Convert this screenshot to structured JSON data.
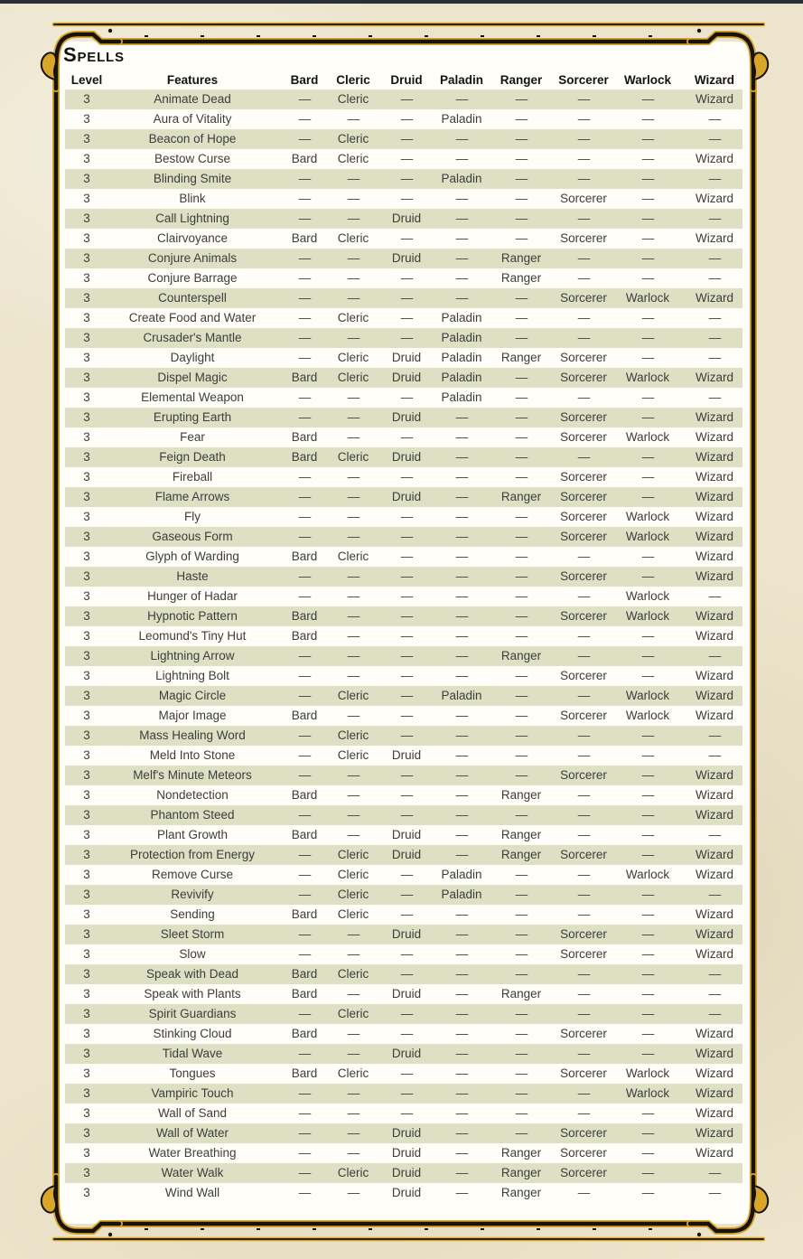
{
  "title": "Spells",
  "table": {
    "headers": [
      "Level",
      "Features",
      "Bard",
      "Cleric",
      "Druid",
      "Paladin",
      "Ranger",
      "Sorcerer",
      "Warlock",
      "Wizard"
    ],
    "rows": [
      [
        "3",
        "Animate Dead",
        "—",
        "Cleric",
        "—",
        "—",
        "—",
        "—",
        "—",
        "Wizard"
      ],
      [
        "3",
        "Aura of Vitality",
        "—",
        "—",
        "—",
        "Paladin",
        "—",
        "—",
        "—",
        "—"
      ],
      [
        "3",
        "Beacon of Hope",
        "—",
        "Cleric",
        "—",
        "—",
        "—",
        "—",
        "—",
        "—"
      ],
      [
        "3",
        "Bestow Curse",
        "Bard",
        "Cleric",
        "—",
        "—",
        "—",
        "—",
        "—",
        "Wizard"
      ],
      [
        "3",
        "Blinding Smite",
        "—",
        "—",
        "—",
        "Paladin",
        "—",
        "—",
        "—",
        "—"
      ],
      [
        "3",
        "Blink",
        "—",
        "—",
        "—",
        "—",
        "—",
        "Sorcerer",
        "—",
        "Wizard"
      ],
      [
        "3",
        "Call Lightning",
        "—",
        "—",
        "Druid",
        "—",
        "—",
        "—",
        "—",
        "—"
      ],
      [
        "3",
        "Clairvoyance",
        "Bard",
        "Cleric",
        "—",
        "—",
        "—",
        "Sorcerer",
        "—",
        "Wizard"
      ],
      [
        "3",
        "Conjure Animals",
        "—",
        "—",
        "Druid",
        "—",
        "Ranger",
        "—",
        "—",
        "—"
      ],
      [
        "3",
        "Conjure Barrage",
        "—",
        "—",
        "—",
        "—",
        "Ranger",
        "—",
        "—",
        "—"
      ],
      [
        "3",
        "Counterspell",
        "—",
        "—",
        "—",
        "—",
        "—",
        "Sorcerer",
        "Warlock",
        "Wizard"
      ],
      [
        "3",
        "Create Food and Water",
        "—",
        "Cleric",
        "—",
        "Paladin",
        "—",
        "—",
        "—",
        "—"
      ],
      [
        "3",
        "Crusader's Mantle",
        "—",
        "—",
        "—",
        "Paladin",
        "—",
        "—",
        "—",
        "—"
      ],
      [
        "3",
        "Daylight",
        "—",
        "Cleric",
        "Druid",
        "Paladin",
        "Ranger",
        "Sorcerer",
        "—",
        "—"
      ],
      [
        "3",
        "Dispel Magic",
        "Bard",
        "Cleric",
        "Druid",
        "Paladin",
        "—",
        "Sorcerer",
        "Warlock",
        "Wizard"
      ],
      [
        "3",
        "Elemental Weapon",
        "—",
        "—",
        "—",
        "Paladin",
        "—",
        "—",
        "—",
        "—"
      ],
      [
        "3",
        "Erupting Earth",
        "—",
        "—",
        "Druid",
        "—",
        "—",
        "Sorcerer",
        "—",
        "Wizard"
      ],
      [
        "3",
        "Fear",
        "Bard",
        "—",
        "—",
        "—",
        "—",
        "Sorcerer",
        "Warlock",
        "Wizard"
      ],
      [
        "3",
        "Feign Death",
        "Bard",
        "Cleric",
        "Druid",
        "—",
        "—",
        "—",
        "—",
        "Wizard"
      ],
      [
        "3",
        "Fireball",
        "—",
        "—",
        "—",
        "—",
        "—",
        "Sorcerer",
        "—",
        "Wizard"
      ],
      [
        "3",
        "Flame Arrows",
        "—",
        "—",
        "Druid",
        "—",
        "Ranger",
        "Sorcerer",
        "—",
        "Wizard"
      ],
      [
        "3",
        "Fly",
        "—",
        "—",
        "—",
        "—",
        "—",
        "Sorcerer",
        "Warlock",
        "Wizard"
      ],
      [
        "3",
        "Gaseous Form",
        "—",
        "—",
        "—",
        "—",
        "—",
        "Sorcerer",
        "Warlock",
        "Wizard"
      ],
      [
        "3",
        "Glyph of Warding",
        "Bard",
        "Cleric",
        "—",
        "—",
        "—",
        "—",
        "—",
        "Wizard"
      ],
      [
        "3",
        "Haste",
        "—",
        "—",
        "—",
        "—",
        "—",
        "Sorcerer",
        "—",
        "Wizard"
      ],
      [
        "3",
        "Hunger of Hadar",
        "—",
        "—",
        "—",
        "—",
        "—",
        "—",
        "Warlock",
        "—"
      ],
      [
        "3",
        "Hypnotic Pattern",
        "Bard",
        "—",
        "—",
        "—",
        "—",
        "Sorcerer",
        "Warlock",
        "Wizard"
      ],
      [
        "3",
        "Leomund's Tiny Hut",
        "Bard",
        "—",
        "—",
        "—",
        "—",
        "—",
        "—",
        "Wizard"
      ],
      [
        "3",
        "Lightning Arrow",
        "—",
        "—",
        "—",
        "—",
        "Ranger",
        "—",
        "—",
        "—"
      ],
      [
        "3",
        "Lightning Bolt",
        "—",
        "—",
        "—",
        "—",
        "—",
        "Sorcerer",
        "—",
        "Wizard"
      ],
      [
        "3",
        "Magic Circle",
        "—",
        "Cleric",
        "—",
        "Paladin",
        "—",
        "—",
        "Warlock",
        "Wizard"
      ],
      [
        "3",
        "Major Image",
        "Bard",
        "—",
        "—",
        "—",
        "—",
        "Sorcerer",
        "Warlock",
        "Wizard"
      ],
      [
        "3",
        "Mass Healing Word",
        "—",
        "Cleric",
        "—",
        "—",
        "—",
        "—",
        "—",
        "—"
      ],
      [
        "3",
        "Meld Into Stone",
        "—",
        "Cleric",
        "Druid",
        "—",
        "—",
        "—",
        "—",
        "—"
      ],
      [
        "3",
        "Melf's Minute Meteors",
        "—",
        "—",
        "—",
        "—",
        "—",
        "Sorcerer",
        "—",
        "Wizard"
      ],
      [
        "3",
        "Nondetection",
        "Bard",
        "—",
        "—",
        "—",
        "Ranger",
        "—",
        "—",
        "Wizard"
      ],
      [
        "3",
        "Phantom Steed",
        "—",
        "—",
        "—",
        "—",
        "—",
        "—",
        "—",
        "Wizard"
      ],
      [
        "3",
        "Plant Growth",
        "Bard",
        "—",
        "Druid",
        "—",
        "Ranger",
        "—",
        "—",
        "—"
      ],
      [
        "3",
        "Protection from Energy",
        "—",
        "Cleric",
        "Druid",
        "—",
        "Ranger",
        "Sorcerer",
        "—",
        "Wizard"
      ],
      [
        "3",
        "Remove Curse",
        "—",
        "Cleric",
        "—",
        "Paladin",
        "—",
        "—",
        "Warlock",
        "Wizard"
      ],
      [
        "3",
        "Revivify",
        "—",
        "Cleric",
        "—",
        "Paladin",
        "—",
        "—",
        "—",
        "—"
      ],
      [
        "3",
        "Sending",
        "Bard",
        "Cleric",
        "—",
        "—",
        "—",
        "—",
        "—",
        "Wizard"
      ],
      [
        "3",
        "Sleet Storm",
        "—",
        "—",
        "Druid",
        "—",
        "—",
        "Sorcerer",
        "—",
        "Wizard"
      ],
      [
        "3",
        "Slow",
        "—",
        "—",
        "—",
        "—",
        "—",
        "Sorcerer",
        "—",
        "Wizard"
      ],
      [
        "3",
        "Speak with Dead",
        "Bard",
        "Cleric",
        "—",
        "—",
        "—",
        "—",
        "—",
        "—"
      ],
      [
        "3",
        "Speak with Plants",
        "Bard",
        "—",
        "Druid",
        "—",
        "Ranger",
        "—",
        "—",
        "—"
      ],
      [
        "3",
        "Spirit Guardians",
        "—",
        "Cleric",
        "—",
        "—",
        "—",
        "—",
        "—",
        "—"
      ],
      [
        "3",
        "Stinking Cloud",
        "Bard",
        "—",
        "—",
        "—",
        "—",
        "Sorcerer",
        "—",
        "Wizard"
      ],
      [
        "3",
        "Tidal Wave",
        "—",
        "—",
        "Druid",
        "—",
        "—",
        "—",
        "—",
        "Wizard"
      ],
      [
        "3",
        "Tongues",
        "Bard",
        "Cleric",
        "—",
        "—",
        "—",
        "Sorcerer",
        "Warlock",
        "Wizard"
      ],
      [
        "3",
        "Vampiric Touch",
        "—",
        "—",
        "—",
        "—",
        "—",
        "—",
        "Warlock",
        "Wizard"
      ],
      [
        "3",
        "Wall of Sand",
        "—",
        "—",
        "—",
        "—",
        "—",
        "—",
        "—",
        "Wizard"
      ],
      [
        "3",
        "Wall of Water",
        "—",
        "—",
        "Druid",
        "—",
        "—",
        "Sorcerer",
        "—",
        "Wizard"
      ],
      [
        "3",
        "Water Breathing",
        "—",
        "—",
        "Druid",
        "—",
        "Ranger",
        "Sorcerer",
        "—",
        "Wizard"
      ],
      [
        "3",
        "Water Walk",
        "—",
        "Cleric",
        "Druid",
        "—",
        "Ranger",
        "Sorcerer",
        "—",
        "—"
      ],
      [
        "3",
        "Wind Wall",
        "—",
        "—",
        "Druid",
        "—",
        "Ranger",
        "—",
        "—",
        "—"
      ]
    ]
  },
  "colors": {
    "stripe": "#dde0c3",
    "frame_gold": "#d9a62b",
    "frame_black": "#17130b",
    "parchment": "#ece4cc",
    "page": "#fffef9",
    "top_bar": "#2b3036",
    "text": "#3d3d3d",
    "heading": "#121212"
  }
}
